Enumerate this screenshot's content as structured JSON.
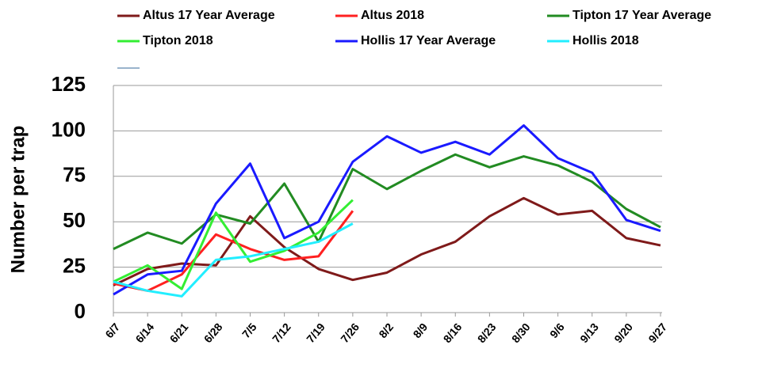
{
  "chart_data": {
    "type": "line",
    "y_label": "Number per trap",
    "categories": [
      "6/7",
      "6/14",
      "6/21",
      "6/28",
      "7/5",
      "7/12",
      "7/19",
      "7/26",
      "8/2",
      "8/9",
      "8/16",
      "8/23",
      "8/30",
      "9/6",
      "9/13",
      "9/20",
      "9/27"
    ],
    "ylim": [
      0,
      125
    ],
    "yticks": [
      0,
      25,
      50,
      75,
      100,
      125
    ],
    "grid": true,
    "series": [
      {
        "name": "Altus 17 Year Average",
        "color": "#7f1a1a",
        "values": [
          15,
          24,
          27,
          26,
          53,
          36,
          24,
          18,
          22,
          32,
          39,
          53,
          63,
          54,
          56,
          41,
          37
        ]
      },
      {
        "name": "Altus 2018",
        "color": "#ff2020",
        "values": [
          16,
          12,
          21,
          43,
          35,
          29,
          31,
          56,
          null,
          null,
          null,
          null,
          null,
          null,
          null,
          null,
          null
        ]
      },
      {
        "name": "Tipton 17 Year Average",
        "color": "#228b22",
        "values": [
          35,
          44,
          38,
          54,
          49,
          71,
          39,
          79,
          68,
          78,
          87,
          80,
          86,
          81,
          72,
          57,
          47
        ]
      },
      {
        "name": "Tipton 2018",
        "color": "#33ee33",
        "values": [
          17,
          26,
          13,
          55,
          28,
          34,
          44,
          62,
          null,
          null,
          null,
          null,
          null,
          null,
          null,
          null,
          null
        ]
      },
      {
        "name": "Hollis 17 Year Average",
        "color": "#1a1aff",
        "values": [
          10,
          21,
          23,
          60,
          82,
          41,
          50,
          83,
          97,
          88,
          94,
          87,
          103,
          85,
          77,
          51,
          45
        ]
      },
      {
        "name": "Hollis 2018",
        "color": "#22eeff",
        "values": [
          17,
          12,
          9,
          29,
          31,
          35,
          39,
          49,
          null,
          null,
          null,
          null,
          null,
          null,
          null,
          null,
          null
        ]
      }
    ]
  }
}
